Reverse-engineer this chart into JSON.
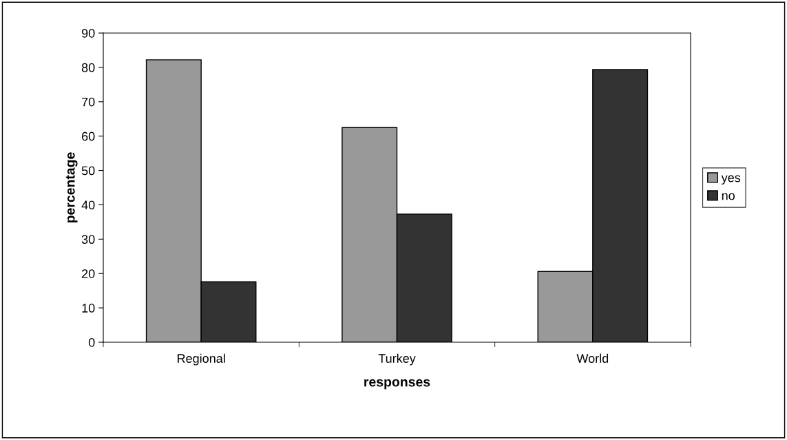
{
  "chart_data": {
    "type": "bar",
    "xlabel": "responses",
    "ylabel": "percentage",
    "categories": [
      "Regional",
      "Turkey",
      "World"
    ],
    "series": [
      {
        "name": "yes",
        "color": "#999999",
        "values": [
          82.2,
          62.5,
          20.6
        ]
      },
      {
        "name": "no",
        "color": "#333333",
        "values": [
          17.6,
          37.3,
          79.4
        ]
      }
    ],
    "ylim": [
      0,
      90
    ],
    "yticks": [
      0,
      10,
      20,
      30,
      40,
      50,
      60,
      70,
      80,
      90
    ],
    "grid": false,
    "legend": "right"
  }
}
